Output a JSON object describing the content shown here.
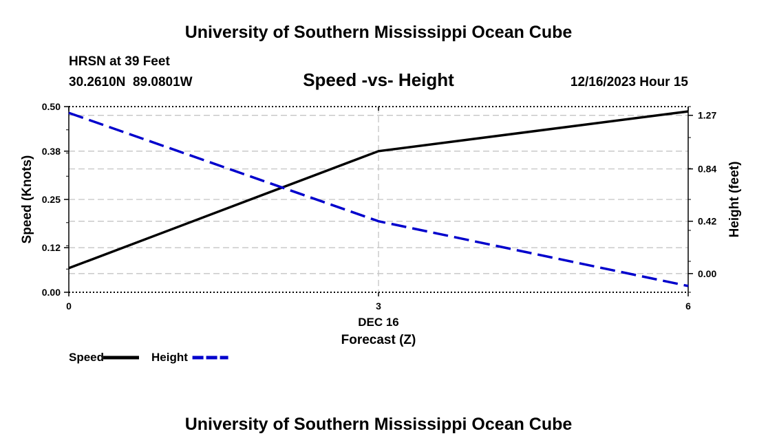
{
  "header": {
    "title_top": "University of Southern Mississippi Ocean Cube",
    "station_line": "HRSN at 39 Feet",
    "coords_line": "30.2610N  89.0801W",
    "datetime": "12/16/2023 Hour 15",
    "title_bottom": "University of Southern Mississippi Ocean Cube"
  },
  "chart_data": {
    "type": "line",
    "title": "Speed -vs- Height",
    "xlabel": "Forecast (Z)",
    "x_date_label": "DEC 16",
    "x": [
      0,
      3,
      6
    ],
    "x_ticks": [
      "0",
      "3",
      "6"
    ],
    "xlim": [
      0,
      6
    ],
    "ylabel": "Speed (Knots)",
    "ylim": [
      0,
      0.5
    ],
    "y_ticks": [
      "0.00",
      "0.12",
      "0.25",
      "0.38",
      "0.50"
    ],
    "y2label": "Height (feet)",
    "y2lim": [
      -0.15,
      1.34
    ],
    "y2_ticks": [
      "0.00",
      "0.42",
      "0.84",
      "1.27"
    ],
    "y2_tick_values": [
      0.0,
      0.42,
      0.84,
      1.27
    ],
    "grid": true,
    "series": [
      {
        "name": "Speed",
        "axis": "left",
        "color": "#000000",
        "dash": "solid",
        "values": [
          0.065,
          0.38,
          0.487
        ]
      },
      {
        "name": "Height",
        "axis": "right",
        "color": "#0000cc",
        "dash": "dashed",
        "values": [
          1.29,
          0.42,
          -0.1
        ]
      }
    ],
    "legend": [
      {
        "label": "Speed",
        "color": "#000000",
        "dash": "solid"
      },
      {
        "label": "Height",
        "color": "#0000cc",
        "dash": "dashed"
      }
    ]
  }
}
